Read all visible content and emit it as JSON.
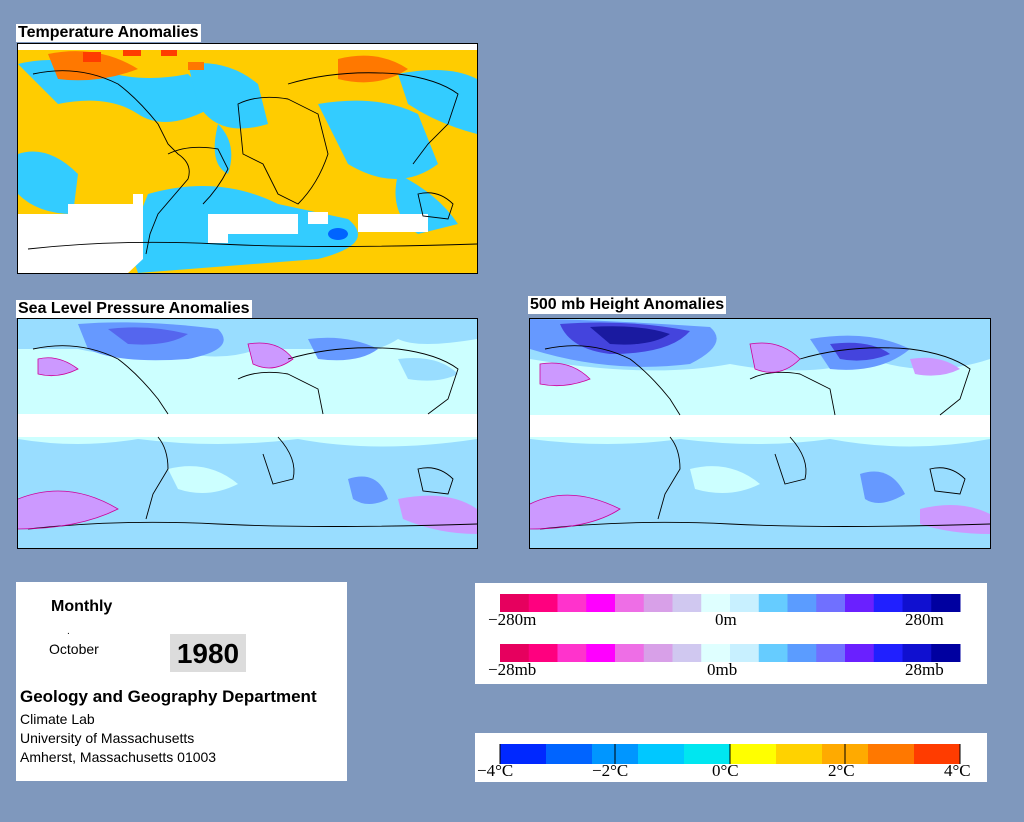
{
  "panels": {
    "temperature": {
      "title": "Temperature Anomalies"
    },
    "slp": {
      "title": "Sea Level Pressure Anomalies"
    },
    "height500": {
      "title": "500 mb Height Anomalies"
    }
  },
  "info": {
    "period": "Monthly",
    "month": "October",
    "year": "1980",
    "department": "Geology and Geography Department",
    "lab": "Climate Lab",
    "university": "University of Massachusetts",
    "address": "Amherst, Massachusetts 01003"
  },
  "legend_height": {
    "labels": [
      "−280m",
      "0m",
      "280m"
    ],
    "colors": [
      "#e6005e",
      "#ff007f",
      "#ff33cc",
      "#ff00ff",
      "#ee6ee6",
      "#d8a0e8",
      "#d0c8f0",
      "#dfffff",
      "#c8f0ff",
      "#66ccff",
      "#5b9cff",
      "#7070ff",
      "#6a20ff",
      "#2020ff",
      "#1010d0",
      "#0000a0"
    ]
  },
  "legend_pressure": {
    "labels": [
      "−28mb",
      "0mb",
      "28mb"
    ],
    "colors": [
      "#e6005e",
      "#ff007f",
      "#ff33cc",
      "#ff00ff",
      "#ee6ee6",
      "#d8a0e8",
      "#d0c8f0",
      "#dfffff",
      "#c8f0ff",
      "#66ccff",
      "#5b9cff",
      "#7070ff",
      "#6a20ff",
      "#2020ff",
      "#1010d0",
      "#0000a0"
    ]
  },
  "legend_temperature": {
    "labels": [
      "−4°C",
      "−2°C",
      "0°C",
      "2°C",
      "4°C"
    ],
    "colors": [
      "#0028ff",
      "#0064ff",
      "#0096ff",
      "#00c8ff",
      "#00e6f0",
      "#ffff00",
      "#ffd200",
      "#ffaa00",
      "#ff7800",
      "#ff3c00"
    ]
  },
  "colors": {
    "background": "#7f98bd",
    "anomaly_warm": "#ffcc00",
    "anomaly_cool": "#33ccff",
    "slp_base": "#ccffff",
    "slp_low": "#6699ff",
    "slp_high": "#cc99ff"
  }
}
